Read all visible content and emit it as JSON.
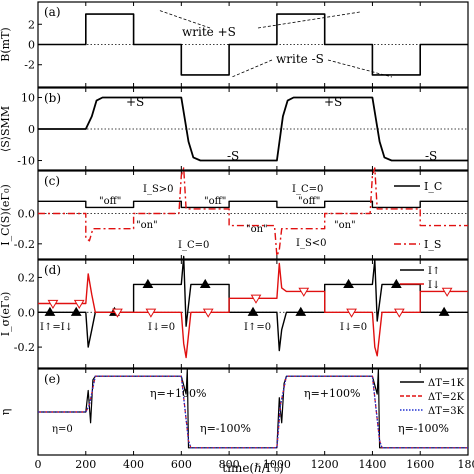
{
  "figure": {
    "xaxis_label": "time(ℏ/Γ₀)",
    "xticks": [
      "0",
      "200",
      "400",
      "600",
      "800",
      "1000",
      "1200",
      "1400",
      "1600",
      "180"
    ]
  },
  "chart_data": [
    {
      "panel": "(a)",
      "type": "line",
      "ylabel": "B(mT)",
      "yticks": [
        "2",
        "0",
        "-2"
      ],
      "ylim": [
        -4.2,
        4.2
      ],
      "series": [
        {
          "x": [
            0,
            200,
            200,
            400,
            400,
            600,
            600,
            800,
            800,
            1000,
            1000,
            1200,
            1200,
            1400,
            1400,
            1600,
            1600,
            1800
          ],
          "y": [
            0,
            0,
            3,
            3,
            0,
            0,
            -3,
            -3,
            0,
            0,
            3,
            3,
            0,
            0,
            -3,
            -3,
            0,
            0
          ]
        }
      ],
      "annotations": [
        "write +S",
        "write -S"
      ]
    },
    {
      "panel": "(b)",
      "type": "line",
      "ylabel": "⟨S⟩SMM",
      "yticks": [
        "10",
        "0",
        "-10"
      ],
      "ylim": [
        -13,
        13
      ],
      "series": [
        {
          "x": [
            0,
            200,
            225,
            245,
            270,
            600,
            630,
            650,
            680,
            1000,
            1025,
            1045,
            1070,
            1400,
            1430,
            1450,
            1480,
            1800
          ],
          "y": [
            0,
            0,
            4,
            9,
            10,
            10,
            -4,
            -9,
            -10,
            -10,
            4,
            9,
            10,
            10,
            -4,
            -9,
            -10,
            -10
          ]
        }
      ],
      "annotations": [
        "+S",
        "-S",
        "+S",
        "-S"
      ]
    },
    {
      "panel": "(c)",
      "type": "line",
      "ylabel": "I_C(S)(eΓ₀)",
      "yticks": [
        "0.0",
        "-0.2"
      ],
      "ylim": [
        -0.3,
        0.28
      ],
      "series": [
        {
          "name": "I_C",
          "x": [
            0,
            200,
            200,
            400,
            400,
            600,
            600,
            800,
            800,
            1000,
            1000,
            1200,
            1200,
            1400,
            1400,
            1600,
            1600,
            1800
          ],
          "y": [
            0.08,
            0.08,
            0.04,
            0.04,
            0.08,
            0.08,
            0.04,
            0.04,
            0.08,
            0.08,
            0.04,
            0.04,
            0.08,
            0.08,
            0.04,
            0.04,
            0.08,
            0.08
          ]
        },
        {
          "name": "I_S",
          "x": [
            0,
            200,
            200,
            215,
            230,
            400,
            400,
            590,
            600,
            610,
            620,
            800,
            800,
            990,
            1000,
            1010,
            1020,
            1200,
            1200,
            1390,
            1400,
            1410,
            1420,
            1600,
            1600,
            1800
          ],
          "y": [
            0,
            0,
            -0.16,
            -0.18,
            -0.1,
            -0.1,
            0,
            0,
            0.25,
            0.3,
            0.03,
            0.03,
            -0.08,
            -0.08,
            -0.28,
            -0.24,
            -0.1,
            -0.1,
            0,
            0,
            0.25,
            0.3,
            0.03,
            0.03,
            -0.08,
            -0.08
          ]
        }
      ],
      "annotations": [
        "\"off\"",
        "\"on\"",
        "\"off\"",
        "\"off\"",
        "\"on\"",
        "\"on\"",
        "I_S>0",
        "I_C=0",
        "I_C=0",
        "I_S<0"
      ]
    },
    {
      "panel": "(d)",
      "type": "line",
      "ylabel": "I_σ(eΓ₀)",
      "yticks": [
        "0.2",
        "0.0",
        "-0.2"
      ],
      "ylim": [
        -0.32,
        0.3
      ],
      "series": [
        {
          "name": "I↑",
          "x": [
            0,
            200,
            210,
            225,
            240,
            400,
            400,
            600,
            610,
            620,
            640,
            800,
            800,
            1000,
            1010,
            1020,
            1040,
            1200,
            1200,
            1400,
            1410,
            1420,
            1440,
            1600,
            1600,
            1800
          ],
          "y": [
            0,
            0,
            -0.2,
            -0.1,
            0,
            0,
            0.16,
            0.16,
            0.32,
            -0.08,
            0.16,
            0.16,
            0,
            0,
            -0.22,
            -0.1,
            0,
            0,
            0.16,
            0.16,
            0.3,
            -0.05,
            0.16,
            0.16,
            0,
            0
          ]
        },
        {
          "name": "I↓",
          "x": [
            0,
            200,
            210,
            225,
            240,
            400,
            400,
            600,
            610,
            620,
            640,
            800,
            800,
            1000,
            1010,
            1020,
            1040,
            1200,
            1200,
            1400,
            1410,
            1420,
            1440,
            1600,
            1600,
            1800
          ],
          "y": [
            0.05,
            0.05,
            0.22,
            0.1,
            0,
            0,
            0,
            0,
            -0.18,
            -0.26,
            0,
            0,
            0.08,
            0.08,
            0.28,
            0.14,
            0.12,
            0.12,
            0,
            0,
            -0.2,
            -0.25,
            0,
            0,
            0.12,
            0.12
          ]
        }
      ],
      "legend": [
        "I↑",
        "I↓"
      ],
      "annotations": [
        "I↑=I↓",
        "I↓=0",
        "I↑=0",
        "I↓=0"
      ]
    },
    {
      "panel": "(e)",
      "type": "line",
      "ylabel": "η",
      "ylim": [
        -1.2,
        1.2
      ],
      "series": [
        {
          "name": "ΔT=1K",
          "x": [
            0,
            200,
            210,
            220,
            230,
            240,
            600,
            620,
            625,
            630,
            640,
            1000,
            1010,
            1020,
            1030,
            1040,
            1400,
            1420,
            1425,
            1430,
            1440,
            1800
          ],
          "y": [
            0,
            0,
            0.6,
            -0.3,
            0.9,
            1,
            1,
            0.5,
            1.2,
            -1,
            -1,
            -1,
            0.4,
            -0.3,
            0.8,
            1,
            1,
            0.5,
            1.2,
            -1,
            -1,
            -1
          ]
        },
        {
          "name": "ΔT=2K",
          "x": [
            0,
            200,
            215,
            240,
            600,
            630,
            640,
            1000,
            1015,
            1040,
            1400,
            1430,
            1440,
            1800
          ],
          "y": [
            0,
            0,
            0.2,
            1,
            1,
            -0.8,
            -1,
            -1,
            0.2,
            1,
            1,
            -0.8,
            -1,
            -1
          ]
        },
        {
          "name": "ΔT=3K",
          "x": [
            0,
            200,
            215,
            240,
            600,
            630,
            640,
            1000,
            1015,
            1040,
            1400,
            1430,
            1440,
            1800
          ],
          "y": [
            0,
            0,
            0.2,
            1,
            1,
            -0.8,
            -1,
            -1,
            0.2,
            1,
            1,
            -0.8,
            -1,
            -1
          ]
        }
      ],
      "legend": [
        "ΔT=1K",
        "ΔT=2K",
        "ΔT=3K"
      ],
      "annotations": [
        "η=0",
        "η=+100%",
        "η=+100%",
        "η=-100%",
        "η=-100%"
      ]
    }
  ]
}
